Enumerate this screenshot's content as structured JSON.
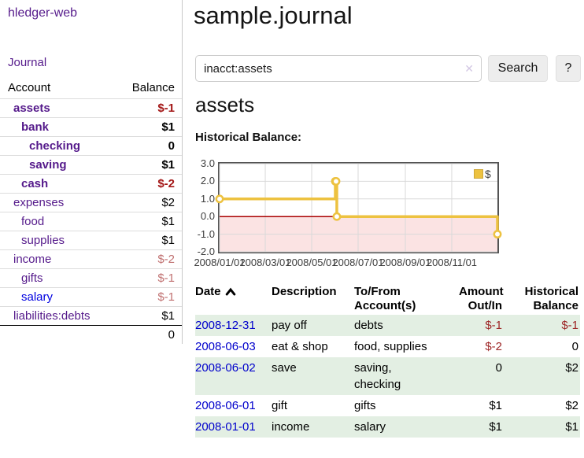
{
  "colors": {
    "link_purple": "#551a8b",
    "link_blue": "#0000cc",
    "negative": "#9d2626",
    "negative_strong": "#a31616",
    "negative_muted": "#c17272",
    "row_stripe_green": "#e3efe3"
  },
  "sidebar": {
    "app_title": "hledger-web",
    "journal_link": "Journal",
    "accounts": {
      "headers": {
        "account": "Account",
        "balance": "Balance"
      },
      "rows": [
        {
          "name": "assets",
          "balance": "$-1"
        },
        {
          "name": "bank",
          "balance": "$1"
        },
        {
          "name": "checking",
          "balance": "0"
        },
        {
          "name": "saving",
          "balance": "$1"
        },
        {
          "name": "cash",
          "balance": "$-2"
        },
        {
          "name": "expenses",
          "balance": "$2"
        },
        {
          "name": "food",
          "balance": "$1"
        },
        {
          "name": "supplies",
          "balance": "$1"
        },
        {
          "name": "income",
          "balance": "$-2"
        },
        {
          "name": "gifts",
          "balance": "$-1"
        },
        {
          "name": "salary",
          "balance": "$-1"
        },
        {
          "name": "liabilities:debts",
          "balance": "$1"
        }
      ],
      "total": "0"
    }
  },
  "main": {
    "title": "sample.journal",
    "search": {
      "value": "inacct:assets",
      "clear_icon": "✕",
      "search_button": "Search",
      "help_button": "?"
    },
    "account_heading": "assets",
    "chart_heading": "Historical Balance:"
  },
  "chart_data": {
    "type": "line",
    "step": true,
    "title": "Historical Balance",
    "series": [
      {
        "name": "$",
        "color": "#edc240",
        "points": [
          {
            "date": "2008-01-01",
            "value": 1
          },
          {
            "date": "2008-06-01",
            "value": 2
          },
          {
            "date": "2008-06-02",
            "value": 2
          },
          {
            "date": "2008-06-03",
            "value": 0
          },
          {
            "date": "2008-12-31",
            "value": -1
          }
        ]
      }
    ],
    "x_range": {
      "min": "2008-01-01",
      "max": "2008-12-31"
    },
    "ylim": [
      -2,
      3
    ],
    "y_ticks": [
      3,
      2,
      1,
      0,
      -1,
      -2
    ],
    "y_tick_labels": [
      "3.0",
      "2.0",
      "1.0",
      "0.0",
      "-1.0",
      "-2.0"
    ],
    "x_ticks": [
      {
        "label": "2008/01/01",
        "date": "2008-01-01"
      },
      {
        "label": "2008/03/01",
        "date": "2008-03-01"
      },
      {
        "label": "2008/05/01",
        "date": "2008-05-01"
      },
      {
        "label": "2008/07/01",
        "date": "2008-07-01"
      },
      {
        "label": "2008/09/01",
        "date": "2008-09-01"
      },
      {
        "label": "2008/11/01",
        "date": "2008-11-01"
      }
    ],
    "legend": {
      "position": "top-right",
      "label": "$"
    },
    "grid": true,
    "colors": {
      "line": "#edc240",
      "marker_fill": "#ffffff",
      "negative_region": "#fbe3e3",
      "zero_line": "#aa0000",
      "grid": "#d9d9d9",
      "border": "#545454"
    }
  },
  "register": {
    "headers": {
      "date": "Date",
      "description": "Description",
      "account": "To/From Account(s)",
      "amount": "Amount Out/In",
      "balance": "Historical Balance"
    },
    "rows": [
      {
        "date": "2008-12-31",
        "description": "pay off",
        "account": "debts",
        "amount": "$-1",
        "balance": "$-1"
      },
      {
        "date": "2008-06-03",
        "description": "eat & shop",
        "account": "food, supplies",
        "amount": "$-2",
        "balance": "0"
      },
      {
        "date": "2008-06-02",
        "description": "save",
        "account": "saving,\nchecking",
        "amount": "0",
        "balance": "$2"
      },
      {
        "date": "2008-06-01",
        "description": "gift",
        "account": "gifts",
        "amount": "$1",
        "balance": "$2"
      },
      {
        "date": "2008-01-01",
        "description": "income",
        "account": "salary",
        "amount": "$1",
        "balance": "$1"
      }
    ]
  }
}
